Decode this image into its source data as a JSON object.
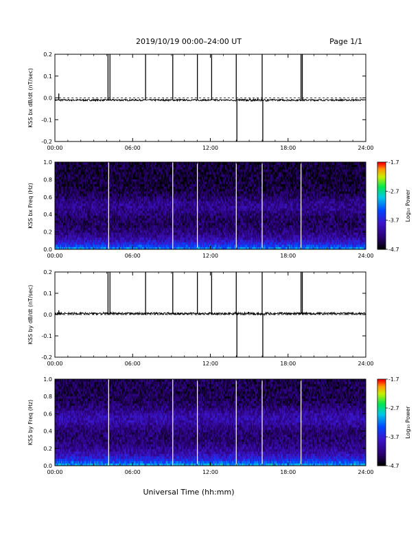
{
  "header": {
    "title": "2019/10/19  00:00–24:00 UT",
    "page": "Page 1/1"
  },
  "x_axis_label": "Universal Time (hh:mm)",
  "chart_data": [
    {
      "type": "line",
      "ylabel": "KSS bx dB/dt (nT/sec)",
      "xlim": [
        0,
        24
      ],
      "ylim": [
        -0.2,
        0.2
      ],
      "x_ticks": [
        "00:00",
        "06:00",
        "12:00",
        "18:00",
        "24:00"
      ],
      "y_ticks": [
        "0.2",
        "0.1",
        "0.0",
        "-0.1",
        "-0.2"
      ],
      "baseline": -0.01,
      "noise_amplitude": 0.004,
      "spikes": [
        {
          "x": 0.3,
          "y": 0.02
        },
        {
          "x": 4.1,
          "y": 0.2
        },
        {
          "x": 4.25,
          "y": 0.2
        },
        {
          "x": 7.0,
          "y": 0.2
        },
        {
          "x": 9.1,
          "y": 0.2
        },
        {
          "x": 11.0,
          "y": 0.2
        },
        {
          "x": 12.1,
          "y": 0.2
        },
        {
          "x": 14.0,
          "y": 0.2
        },
        {
          "x": 14.05,
          "y": -0.2
        },
        {
          "x": 16.0,
          "y": 0.2
        },
        {
          "x": 16.05,
          "y": -0.2
        },
        {
          "x": 19.0,
          "y": 0.2
        },
        {
          "x": 19.1,
          "y": 0.2
        }
      ]
    },
    {
      "type": "heatmap",
      "ylabel": "KSS bx Freq (Hz)",
      "xlim": [
        0,
        24
      ],
      "ylim": [
        0.0,
        1.0
      ],
      "x_ticks": [
        "00:00",
        "06:00",
        "12:00",
        "18:00",
        "24:00"
      ],
      "y_ticks": [
        "1.0",
        "0.8",
        "0.6",
        "0.4",
        "0.2",
        "0.0"
      ],
      "colorbar_label": "Log₁₀ Power",
      "colorbar_ticks": [
        "-1.7",
        "-2.7",
        "-3.7",
        "-4.7"
      ],
      "color_range": [
        -4.7,
        -1.7
      ],
      "gap_times": [
        4.15,
        9.1,
        11.0,
        14.0,
        16.0,
        19.0
      ],
      "profile": {
        "low_freq_power": -3.0,
        "high_freq_power": -4.5,
        "band_center": 0.5,
        "band_power": -3.9
      }
    },
    {
      "type": "line",
      "ylabel": "KSS by dB/dt (nT/sec)",
      "xlim": [
        0,
        24
      ],
      "ylim": [
        -0.2,
        0.2
      ],
      "x_ticks": [
        "00:00",
        "06:00",
        "12:00",
        "18:00",
        "24:00"
      ],
      "y_ticks": [
        "0.2",
        "0.1",
        "0.0",
        "-0.1",
        "-0.2"
      ],
      "baseline": 0.005,
      "noise_amplitude": 0.005,
      "spikes": [
        {
          "x": 0.3,
          "y": 0.02
        },
        {
          "x": 4.1,
          "y": 0.2
        },
        {
          "x": 4.25,
          "y": 0.2
        },
        {
          "x": 7.0,
          "y": 0.2
        },
        {
          "x": 9.1,
          "y": 0.2
        },
        {
          "x": 11.0,
          "y": 0.2
        },
        {
          "x": 12.1,
          "y": 0.2
        },
        {
          "x": 14.0,
          "y": 0.2
        },
        {
          "x": 14.05,
          "y": -0.2
        },
        {
          "x": 16.0,
          "y": 0.2
        },
        {
          "x": 16.05,
          "y": -0.2
        },
        {
          "x": 19.0,
          "y": 0.2
        },
        {
          "x": 19.1,
          "y": 0.2
        }
      ]
    },
    {
      "type": "heatmap",
      "ylabel": "KSS by Freq (Hz)",
      "xlim": [
        0,
        24
      ],
      "ylim": [
        0.0,
        1.0
      ],
      "x_ticks": [
        "00:00",
        "06:00",
        "12:00",
        "18:00",
        "24:00"
      ],
      "y_ticks": [
        "1.0",
        "0.8",
        "0.6",
        "0.4",
        "0.2",
        "0.0"
      ],
      "colorbar_label": "Log₁₀ Power",
      "colorbar_ticks": [
        "-1.7",
        "-2.7",
        "-3.7",
        "-4.7"
      ],
      "color_range": [
        -4.7,
        -1.7
      ],
      "gap_times": [
        4.15,
        9.1,
        11.0,
        14.0,
        16.0,
        19.0
      ],
      "profile": {
        "low_freq_power": -2.9,
        "high_freq_power": -4.4,
        "band_center": 0.55,
        "band_power": -3.7
      }
    }
  ]
}
